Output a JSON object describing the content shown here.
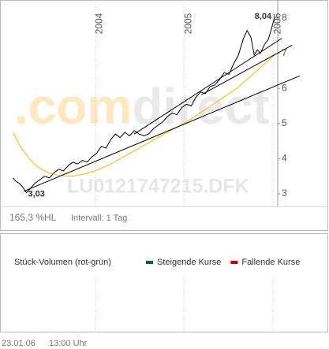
{
  "chart_data": {
    "type": "line",
    "xlim": [
      2002.96,
      2006.3
    ],
    "ylim": [
      2.73,
      8.45
    ],
    "xticks": [
      2004,
      2005,
      2006
    ],
    "yticks": [
      3,
      4,
      5,
      6,
      7,
      8
    ],
    "grid": true,
    "series": [
      {
        "color": "#000000",
        "x": [
          2003.08,
          2003.115,
          2003.15,
          2003.186,
          2003.23,
          2003.274,
          2003.327,
          2003.381,
          2003.434,
          2003.487,
          2003.54,
          2003.593,
          2003.646,
          2003.699,
          2003.752,
          2003.805,
          2003.858,
          2003.912,
          2003.965,
          2004.018,
          2004.071,
          2004.124,
          2004.177,
          2004.23,
          2004.283,
          2004.336,
          2004.389,
          2004.442,
          2004.496,
          2004.549,
          2004.602,
          2004.655,
          2004.708,
          2004.761,
          2004.814,
          2004.867,
          2004.92,
          2004.973,
          2005.027,
          2005.08,
          2005.133,
          2005.186,
          2005.239,
          2005.292,
          2005.345,
          2005.398,
          2005.451,
          2005.504,
          2005.558,
          2005.611,
          2005.664,
          2005.708,
          2005.752,
          2005.788,
          2005.823,
          2005.858,
          2005.903,
          2005.947,
          2005.982,
          2006.018
        ],
        "values": [
          3.45,
          3.35,
          3.3,
          3.2,
          3.03,
          3.15,
          3.3,
          3.4,
          3.5,
          3.45,
          3.6,
          3.7,
          3.65,
          3.8,
          3.9,
          3.85,
          3.95,
          3.9,
          4.05,
          4.15,
          4.35,
          4.3,
          4.55,
          4.7,
          4.6,
          4.75,
          4.65,
          4.8,
          4.7,
          4.65,
          4.7,
          4.85,
          4.95,
          5.05,
          5.2,
          5.3,
          5.25,
          5.45,
          5.55,
          5.5,
          5.75,
          5.9,
          5.85,
          6.05,
          6.1,
          6.25,
          6.45,
          6.4,
          6.7,
          6.95,
          7.4,
          7.65,
          7.45,
          6.95,
          7.1,
          7.0,
          7.25,
          7.4,
          7.7,
          8.04
        ]
      },
      {
        "color": "#f5b800",
        "x": [
          2003.08,
          2003.159,
          2003.248,
          2003.336,
          2003.469,
          2003.602,
          2003.735,
          2003.867,
          2004.0,
          2004.177,
          2004.354,
          2004.531,
          2004.708,
          2004.885,
          2005.062,
          2005.239,
          2005.416,
          2005.593,
          2005.77,
          2005.903,
          2006.018
        ],
        "values": [
          4.75,
          4.35,
          4.05,
          3.8,
          3.6,
          3.52,
          3.5,
          3.55,
          3.65,
          3.85,
          4.1,
          4.35,
          4.6,
          4.85,
          5.1,
          5.4,
          5.7,
          6.0,
          6.4,
          6.7,
          6.95
        ]
      },
      {
        "color": "#000000",
        "x": [
          2003.2,
          2006.3
        ],
        "values": [
          3.07,
          6.36
        ]
      },
      {
        "color": "#000000",
        "x": [
          2004.44,
          2006.1
        ],
        "values": [
          4.7,
          7.43
        ]
      },
      {
        "color": "#000000",
        "x": [
          2005.195,
          2006.212
        ],
        "values": [
          5.82,
          7.23
        ]
      }
    ],
    "annotations": [
      {
        "label": "8,04",
        "x": 2006.018,
        "value": 8.04
      },
      {
        "label": "3,03",
        "x": 2003.23,
        "value": 3.03
      }
    ],
    "watermark": [
      ".com",
      "direct"
    ],
    "symbol": "LU0121747215.DFK",
    "performance": "165,3 %HL",
    "interval": "Intervall: 1 Tag"
  },
  "volume_panel": {
    "title": "Stück-Volumen (rot-grün)",
    "legend": [
      {
        "name": "Steigende Kurse",
        "color": "#006633"
      },
      {
        "name": "Fallende Kurse",
        "color": "#cc0000"
      }
    ]
  },
  "footer": {
    "date": "23.01.06",
    "time": "13:00 Uhr"
  }
}
